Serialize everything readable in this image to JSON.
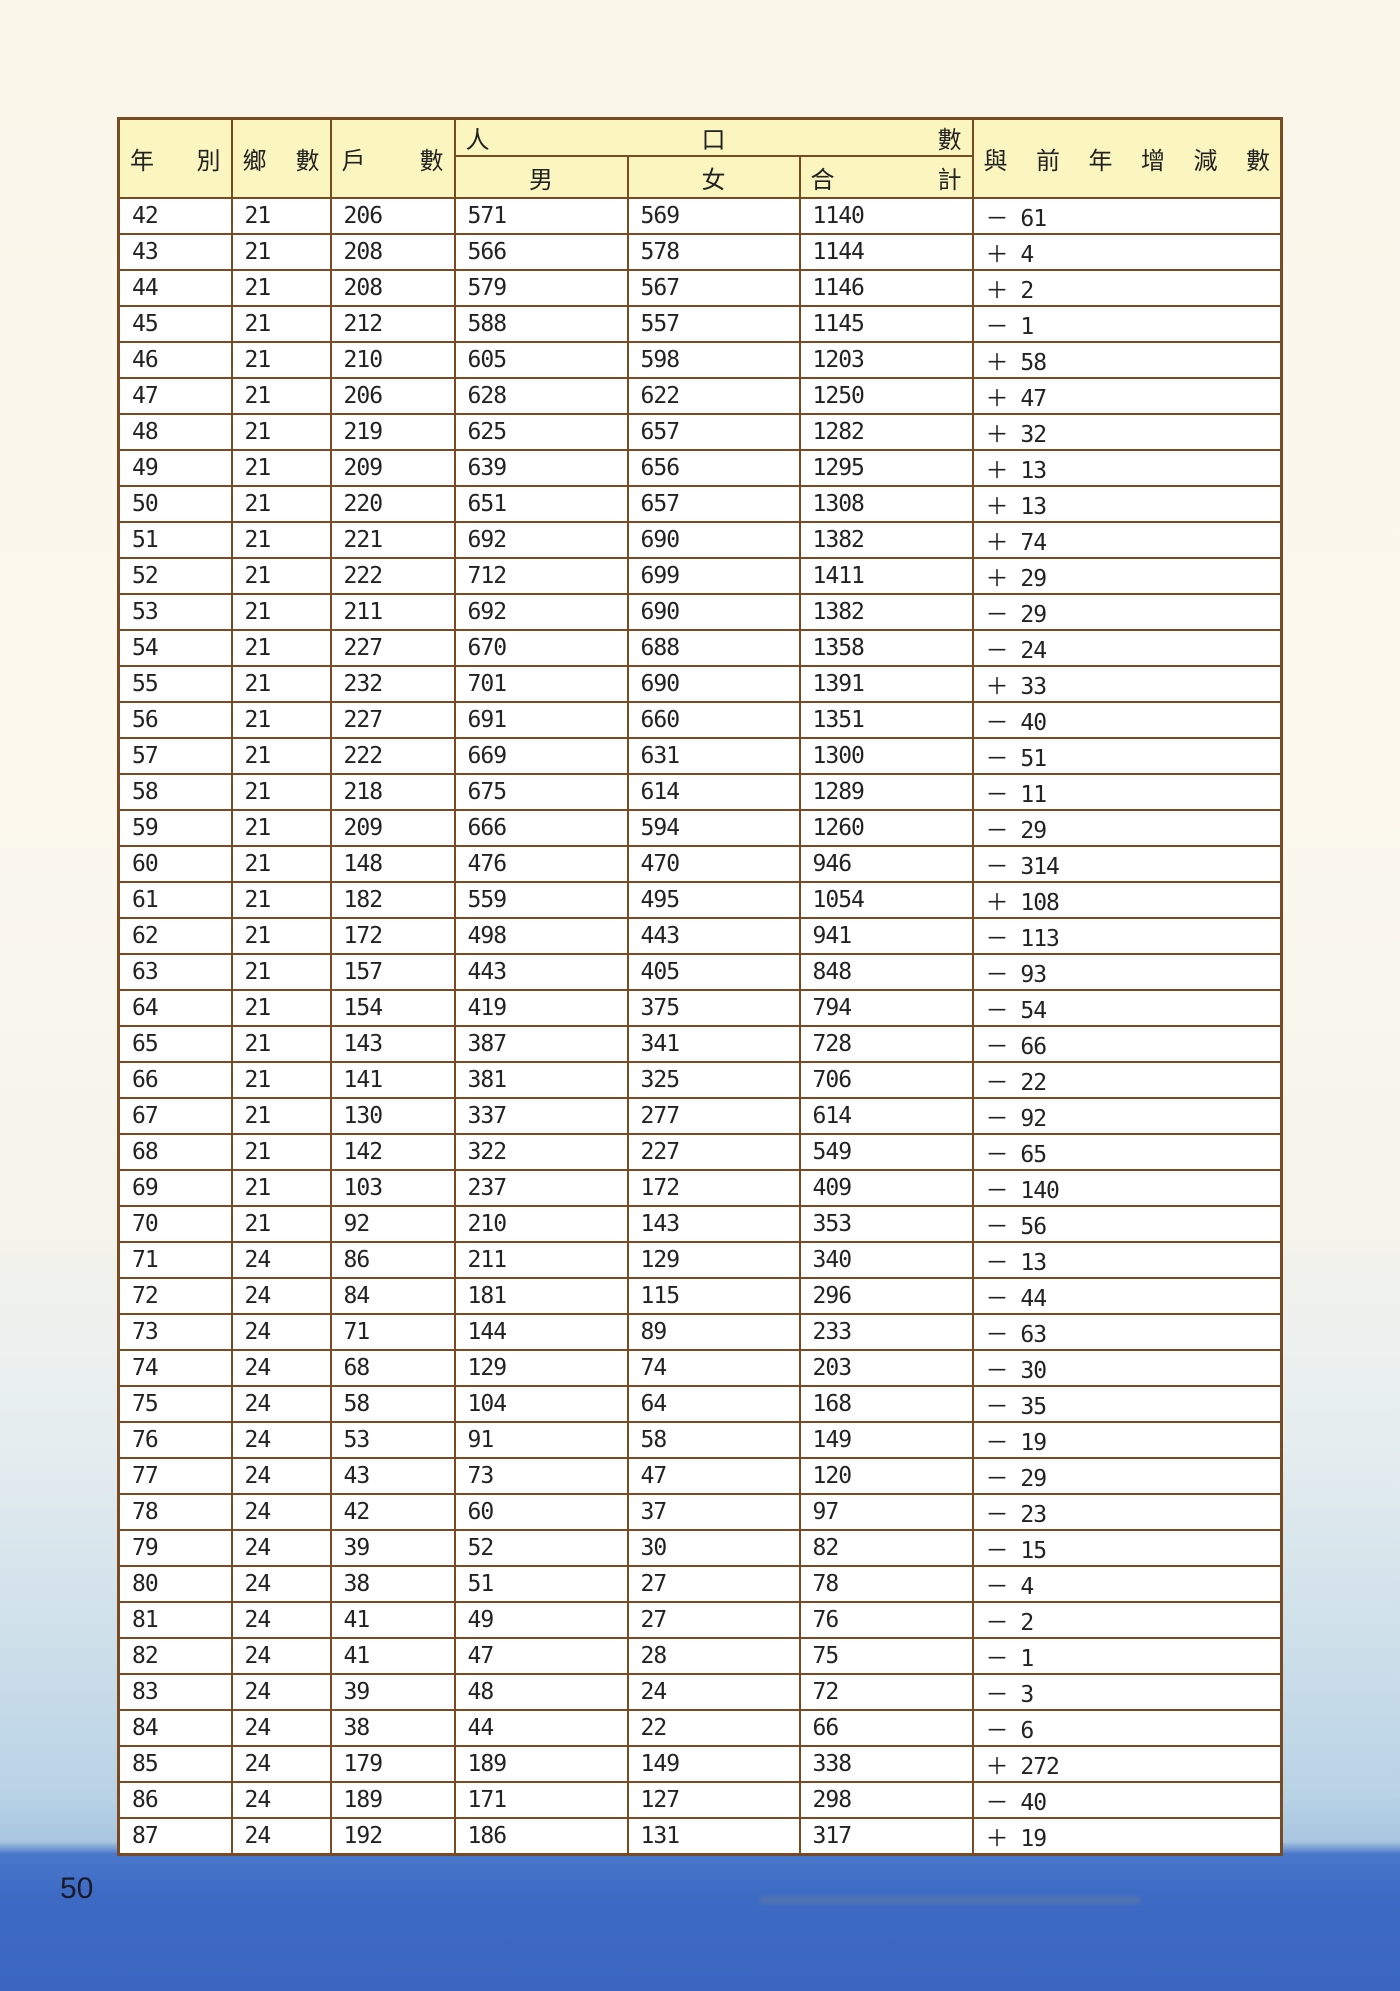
{
  "header": {
    "year": [
      "年",
      "別"
    ],
    "townships": [
      "鄉",
      "數"
    ],
    "households": [
      "戶",
      "數"
    ],
    "population": [
      "人",
      "口",
      "數"
    ],
    "male": "男",
    "female": "女",
    "total": [
      "合",
      "計"
    ],
    "change": [
      "與",
      "前",
      "年",
      "增",
      "減",
      "數"
    ]
  },
  "rows": [
    [
      "42",
      "21",
      "206",
      "571",
      "569",
      "1140",
      "－ 61"
    ],
    [
      "43",
      "21",
      "208",
      "566",
      "578",
      "1144",
      "＋ 4"
    ],
    [
      "44",
      "21",
      "208",
      "579",
      "567",
      "1146",
      "＋ 2"
    ],
    [
      "45",
      "21",
      "212",
      "588",
      "557",
      "1145",
      "－ 1"
    ],
    [
      "46",
      "21",
      "210",
      "605",
      "598",
      "1203",
      "＋ 58"
    ],
    [
      "47",
      "21",
      "206",
      "628",
      "622",
      "1250",
      "＋ 47"
    ],
    [
      "48",
      "21",
      "219",
      "625",
      "657",
      "1282",
      "＋ 32"
    ],
    [
      "49",
      "21",
      "209",
      "639",
      "656",
      "1295",
      "＋ 13"
    ],
    [
      "50",
      "21",
      "220",
      "651",
      "657",
      "1308",
      "＋ 13"
    ],
    [
      "51",
      "21",
      "221",
      "692",
      "690",
      "1382",
      "＋ 74"
    ],
    [
      "52",
      "21",
      "222",
      "712",
      "699",
      "1411",
      "＋ 29"
    ],
    [
      "53",
      "21",
      "211",
      "692",
      "690",
      "1382",
      "－ 29"
    ],
    [
      "54",
      "21",
      "227",
      "670",
      "688",
      "1358",
      "－ 24"
    ],
    [
      "55",
      "21",
      "232",
      "701",
      "690",
      "1391",
      "＋ 33"
    ],
    [
      "56",
      "21",
      "227",
      "691",
      "660",
      "1351",
      "－ 40"
    ],
    [
      "57",
      "21",
      "222",
      "669",
      "631",
      "1300",
      "－ 51"
    ],
    [
      "58",
      "21",
      "218",
      "675",
      "614",
      "1289",
      "－ 11"
    ],
    [
      "59",
      "21",
      "209",
      "666",
      "594",
      "1260",
      "－ 29"
    ],
    [
      "60",
      "21",
      "148",
      "476",
      "470",
      "946",
      "－ 314"
    ],
    [
      "61",
      "21",
      "182",
      "559",
      "495",
      "1054",
      "＋ 108"
    ],
    [
      "62",
      "21",
      "172",
      "498",
      "443",
      "941",
      "－ 113"
    ],
    [
      "63",
      "21",
      "157",
      "443",
      "405",
      "848",
      "－ 93"
    ],
    [
      "64",
      "21",
      "154",
      "419",
      "375",
      "794",
      "－ 54"
    ],
    [
      "65",
      "21",
      "143",
      "387",
      "341",
      "728",
      "－ 66"
    ],
    [
      "66",
      "21",
      "141",
      "381",
      "325",
      "706",
      "－ 22"
    ],
    [
      "67",
      "21",
      "130",
      "337",
      "277",
      "614",
      "－ 92"
    ],
    [
      "68",
      "21",
      "142",
      "322",
      "227",
      "549",
      "－ 65"
    ],
    [
      "69",
      "21",
      "103",
      "237",
      "172",
      "409",
      "－ 140"
    ],
    [
      "70",
      "21",
      "92",
      "210",
      "143",
      "353",
      "－ 56"
    ],
    [
      "71",
      "24",
      "86",
      "211",
      "129",
      "340",
      "－ 13"
    ],
    [
      "72",
      "24",
      "84",
      "181",
      "115",
      "296",
      "－ 44"
    ],
    [
      "73",
      "24",
      "71",
      "144",
      "89",
      "233",
      "－ 63"
    ],
    [
      "74",
      "24",
      "68",
      "129",
      "74",
      "203",
      "－ 30"
    ],
    [
      "75",
      "24",
      "58",
      "104",
      "64",
      "168",
      "－ 35"
    ],
    [
      "76",
      "24",
      "53",
      "91",
      "58",
      "149",
      "－ 19"
    ],
    [
      "77",
      "24",
      "43",
      "73",
      "47",
      "120",
      "－ 29"
    ],
    [
      "78",
      "24",
      "42",
      "60",
      "37",
      "97",
      "－ 23"
    ],
    [
      "79",
      "24",
      "39",
      "52",
      "30",
      "82",
      "－ 15"
    ],
    [
      "80",
      "24",
      "38",
      "51",
      "27",
      "78",
      "－ 4"
    ],
    [
      "81",
      "24",
      "41",
      "49",
      "27",
      "76",
      "－ 2"
    ],
    [
      "82",
      "24",
      "41",
      "47",
      "28",
      "75",
      "－ 1"
    ],
    [
      "83",
      "24",
      "39",
      "48",
      "24",
      "72",
      "－ 3"
    ],
    [
      "84",
      "24",
      "38",
      "44",
      "22",
      "66",
      "－ 6"
    ],
    [
      "85",
      "24",
      "179",
      "189",
      "149",
      "338",
      "＋ 272"
    ],
    [
      "86",
      "24",
      "189",
      "171",
      "127",
      "298",
      "－ 40"
    ],
    [
      "87",
      "24",
      "192",
      "186",
      "131",
      "317",
      "＋ 19"
    ]
  ],
  "page_number": "50",
  "colors": {
    "border": "#7a4a22",
    "header_bg": "#fbf5c0",
    "sea": "#3d6bc4"
  }
}
